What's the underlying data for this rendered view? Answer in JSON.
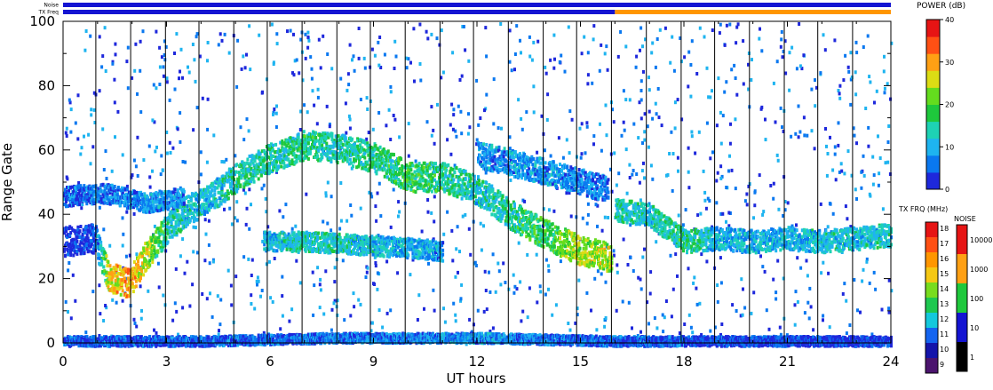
{
  "chart_data": {
    "type": "heatmap",
    "title": "",
    "xlabel": "UT hours",
    "ylabel": "Range Gate",
    "xlim": [
      0,
      24
    ],
    "ylim": [
      0,
      100
    ],
    "x_ticks": [
      "0",
      "3",
      "6",
      "9",
      "12",
      "15",
      "18",
      "21",
      "24"
    ],
    "y_ticks": [
      "0",
      "20",
      "40",
      "60",
      "80",
      "100"
    ],
    "status_strips": {
      "noise_label": "Noise",
      "txfreq_label": "TX Freq",
      "noise_color": "#1414d2",
      "txfreq_segments": [
        {
          "from": 0,
          "to": 16,
          "color": "#1414d2"
        },
        {
          "from": 16,
          "to": 24,
          "color": "#ff9600"
        }
      ]
    },
    "scan_boundaries_ut": [
      0.95,
      1.96,
      2.97,
      3.94,
      4.95,
      5.92,
      6.93,
      7.94,
      8.91,
      9.92,
      10.93,
      11.9,
      12.91,
      13.92,
      14.89,
      15.9,
      16.91,
      17.92,
      18.89,
      19.9,
      20.91,
      21.88,
      22.89
    ],
    "echo_bands": [
      {
        "name": "band-a",
        "points": [
          [
            0,
            32,
            2
          ],
          [
            0.9,
            33,
            3
          ],
          [
            1.3,
            21,
            26
          ],
          [
            1.9,
            19,
            30
          ],
          [
            2.4,
            28,
            24
          ],
          [
            3.0,
            36,
            14
          ],
          [
            3.6,
            42,
            12
          ],
          [
            4.2,
            45,
            11
          ],
          [
            5.0,
            52,
            14
          ],
          [
            6.0,
            58,
            14
          ],
          [
            7.0,
            62,
            16
          ],
          [
            8.0,
            61,
            14
          ],
          [
            9.0,
            58,
            15
          ],
          [
            10.0,
            52,
            17
          ],
          [
            11.0,
            52,
            16
          ],
          [
            12.0,
            48,
            12
          ],
          [
            13.0,
            40,
            15
          ],
          [
            14.0,
            34,
            18
          ],
          [
            15.0,
            29,
            24
          ],
          [
            15.9,
            27,
            24
          ]
        ],
        "width": 4.5
      },
      {
        "name": "band-b",
        "points": [
          [
            0,
            46,
            4
          ],
          [
            1.2,
            47,
            6
          ],
          [
            2.4,
            44,
            8
          ],
          [
            3.5,
            46,
            8
          ]
        ],
        "width": 3
      },
      {
        "name": "band-c",
        "points": [
          [
            5.8,
            32,
            10
          ],
          [
            7.0,
            32,
            14
          ],
          [
            8.5,
            31,
            12
          ],
          [
            10.0,
            30,
            10
          ],
          [
            11.0,
            29,
            8
          ]
        ],
        "width": 3
      },
      {
        "name": "band-d",
        "points": [
          [
            12.0,
            59,
            8
          ],
          [
            13.5,
            55,
            8
          ],
          [
            14.5,
            52,
            8
          ],
          [
            15.8,
            48,
            6
          ]
        ],
        "width": 4
      },
      {
        "name": "band-e",
        "points": [
          [
            16.0,
            42,
            14
          ],
          [
            17.0,
            40,
            12
          ],
          [
            18.0,
            32,
            16
          ],
          [
            19.0,
            33,
            10
          ],
          [
            20.0,
            32,
            10
          ],
          [
            21.0,
            33,
            10
          ],
          [
            22.0,
            32,
            12
          ],
          [
            23.0,
            33,
            12
          ],
          [
            24.0,
            34,
            12
          ]
        ],
        "width": 3.5
      },
      {
        "name": "band-f",
        "points": [
          [
            0,
            1,
            4
          ],
          [
            4.0,
            1,
            4
          ],
          [
            8.0,
            2,
            6
          ],
          [
            12.0,
            2,
            8
          ],
          [
            16.0,
            1,
            4
          ],
          [
            24.0,
            1,
            2
          ]
        ],
        "width": 1.5
      }
    ]
  },
  "power_scale": {
    "title": "POWER (dB)",
    "ticks": [
      "0",
      "10",
      "20",
      "30",
      "40"
    ],
    "min": 0,
    "max": 40,
    "colors": [
      "#1e28dc",
      "#0a78f0",
      "#1eb4f0",
      "#1ed2b4",
      "#1ec83c",
      "#64dc1e",
      "#dcdc14",
      "#ffa014",
      "#ff5014",
      "#e61414"
    ]
  },
  "txfreq_scale": {
    "title": "TX FRQ (MHz)",
    "labels": [
      "18",
      "17",
      "16",
      "15",
      "14",
      "13",
      "12",
      "11",
      "10",
      "9"
    ],
    "colors": [
      "#e61414",
      "#ff5014",
      "#ff9600",
      "#f5c814",
      "#78dc1e",
      "#1ec850",
      "#14c8dc",
      "#1464f0",
      "#1414aa",
      "#4b146e"
    ]
  },
  "noise_scale": {
    "title": "NOISE",
    "labels": [
      "10000",
      "1000",
      "100",
      "10",
      "1"
    ],
    "colors": [
      "#e61414",
      "#ffa014",
      "#1ec83c",
      "#1414d2",
      "#000000"
    ]
  }
}
